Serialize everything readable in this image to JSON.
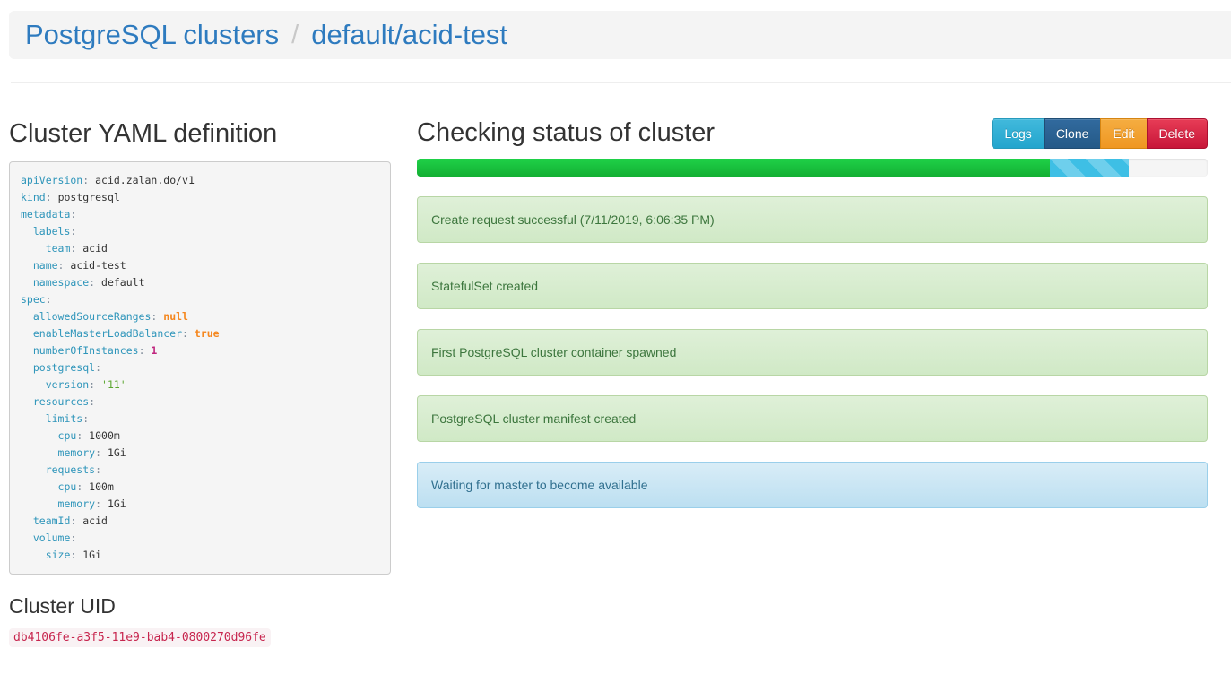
{
  "breadcrumb": {
    "root": "PostgreSQL clusters",
    "separator": "/",
    "current": "default/acid-test"
  },
  "yaml_section": {
    "title": "Cluster YAML definition",
    "lines": [
      {
        "key": "apiVersion",
        "value": "acid.zalan.do/v1",
        "type": "plain"
      },
      {
        "key": "kind",
        "value": "postgresql",
        "type": "plain"
      },
      {
        "key": "metadata",
        "value": "",
        "type": "plain"
      },
      {
        "key": "  labels",
        "value": "",
        "type": "plain"
      },
      {
        "key": "    team",
        "value": "acid",
        "type": "plain"
      },
      {
        "key": "  name",
        "value": "acid-test",
        "type": "plain"
      },
      {
        "key": "  namespace",
        "value": "default",
        "type": "plain"
      },
      {
        "key": "spec",
        "value": "",
        "type": "plain"
      },
      {
        "key": "  allowedSourceRanges",
        "value": "null",
        "type": "literal"
      },
      {
        "key": "  enableMasterLoadBalancer",
        "value": "true",
        "type": "literal"
      },
      {
        "key": "  numberOfInstances",
        "value": "1",
        "type": "number"
      },
      {
        "key": "  postgresql",
        "value": "",
        "type": "plain"
      },
      {
        "key": "    version",
        "value": "'11'",
        "type": "string"
      },
      {
        "key": "  resources",
        "value": "",
        "type": "plain"
      },
      {
        "key": "    limits",
        "value": "",
        "type": "plain"
      },
      {
        "key": "      cpu",
        "value": "1000m",
        "type": "plain"
      },
      {
        "key": "      memory",
        "value": "1Gi",
        "type": "plain"
      },
      {
        "key": "    requests",
        "value": "",
        "type": "plain"
      },
      {
        "key": "      cpu",
        "value": "100m",
        "type": "plain"
      },
      {
        "key": "      memory",
        "value": "1Gi",
        "type": "plain"
      },
      {
        "key": "  teamId",
        "value": "acid",
        "type": "plain"
      },
      {
        "key": "  volume",
        "value": "",
        "type": "plain"
      },
      {
        "key": "    size",
        "value": "1Gi",
        "type": "plain"
      }
    ]
  },
  "uid_section": {
    "title": "Cluster UID",
    "uid": "db4106fe-a3f5-11e9-bab4-0800270d96fe"
  },
  "status_section": {
    "title": "Checking status of cluster",
    "buttons": [
      {
        "label": "Logs",
        "style": "info"
      },
      {
        "label": "Clone",
        "style": "primary"
      },
      {
        "label": "Edit",
        "style": "warning"
      },
      {
        "label": "Delete",
        "style": "danger"
      }
    ],
    "progress": {
      "success_percent": 80,
      "striped_percent": 10
    },
    "messages": [
      {
        "text": "Create request successful (7/11/2019, 6:06:35 PM)",
        "level": "success"
      },
      {
        "text": "StatefulSet created",
        "level": "success"
      },
      {
        "text": "First PostgreSQL cluster container spawned",
        "level": "success"
      },
      {
        "text": "PostgreSQL cluster manifest created",
        "level": "success"
      },
      {
        "text": "Waiting for master to become available",
        "level": "info"
      }
    ]
  },
  "colors": {
    "link_blue": "#2e7bbf",
    "heading": "#333333",
    "header_strip_bg": "#f4f4f4",
    "yaml_key": "#2e95ba",
    "yaml_literal_orange": "#f5871f",
    "yaml_number_magenta": "#c0267e",
    "yaml_string_green": "#5ba62f",
    "uid_text": "#c7254e",
    "uid_bg": "#f9f2f4",
    "btn_info": "#31b0d5",
    "btn_primary": "#265a88",
    "btn_warning": "#f0ad4e",
    "btn_danger": "#d9304d",
    "progress_green": "#1cc53f",
    "progress_cyan": "#3ebfe5",
    "alert_success_text": "#3c763d",
    "alert_success_bg": "#dff0d8",
    "alert_info_text": "#31708f",
    "alert_info_bg": "#d9edf7"
  }
}
